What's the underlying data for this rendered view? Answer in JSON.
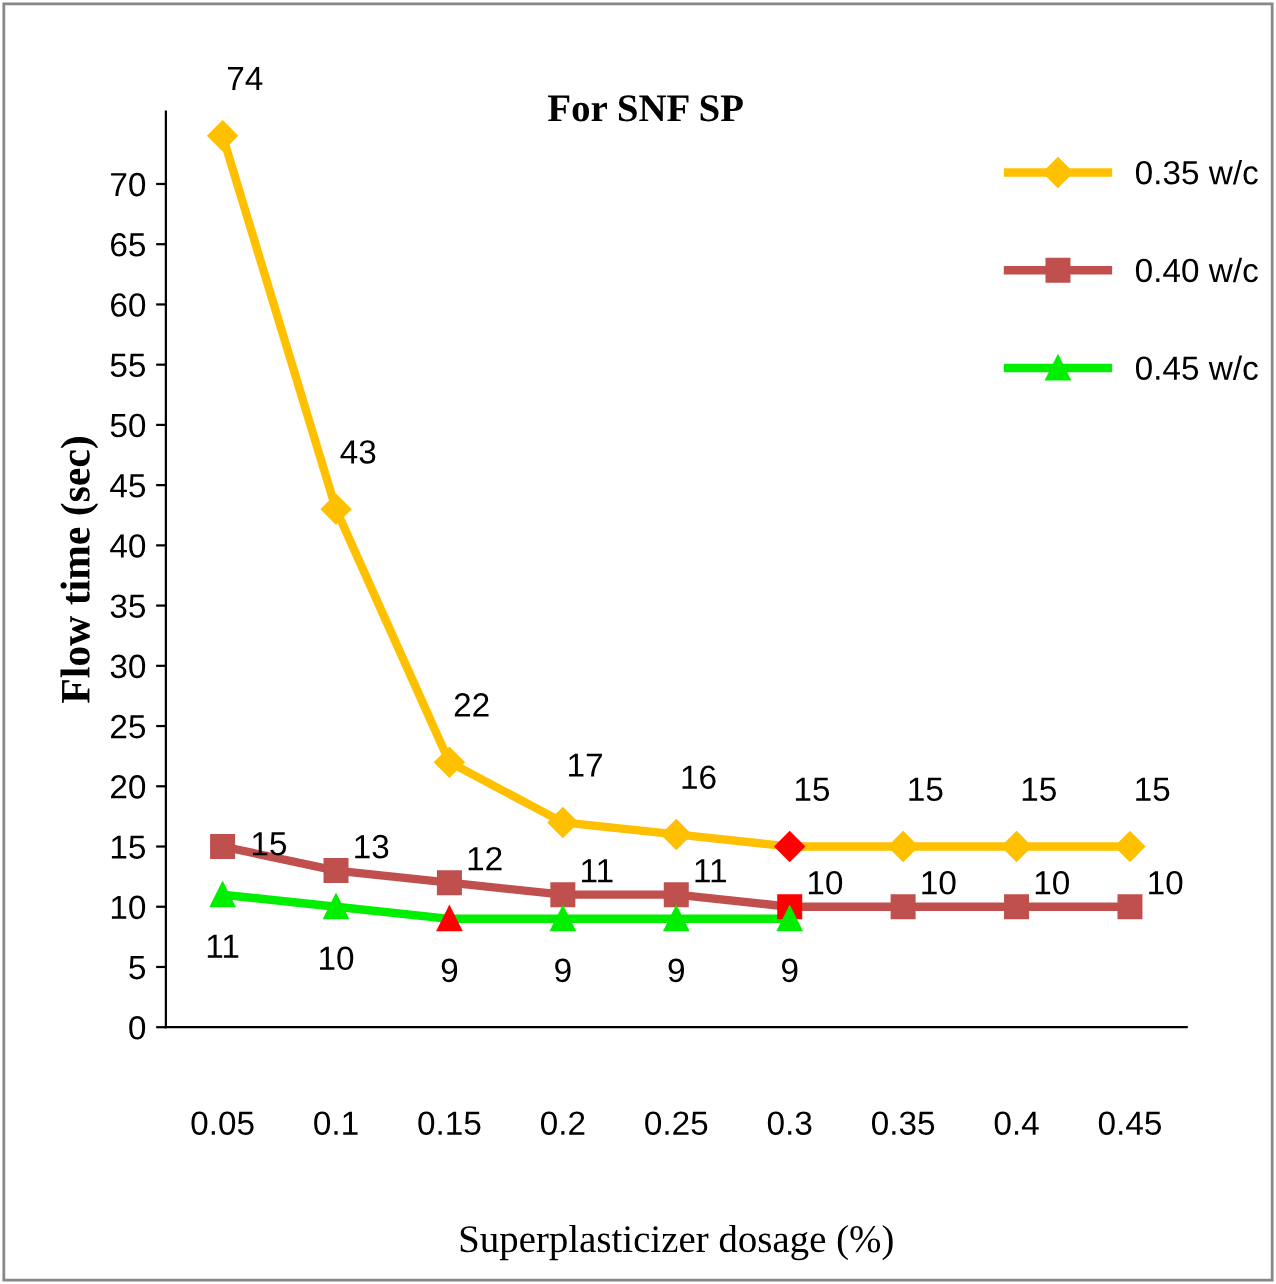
{
  "chart_data": {
    "type": "line",
    "title": "For SNF SP",
    "xlabel": "Superplasticizer dosage (%)",
    "ylabel": "Flow time (sec)",
    "categories": [
      "0.05",
      "0.1",
      "0.15",
      "0.2",
      "0.25",
      "0.3",
      "0.35",
      "0.4",
      "0.45"
    ],
    "series": [
      {
        "name": "0.35 w/c",
        "color": "#ffc000",
        "marker": "diamond",
        "values": [
          74,
          43,
          22,
          17,
          16,
          15,
          15,
          15,
          15
        ],
        "colors": [
          "#ffc000",
          "#ffc000",
          "#ffc000",
          "#ffc000",
          "#ffc000",
          "#ff0000",
          "#ffc000",
          "#ffc000",
          "#ffc000"
        ]
      },
      {
        "name": "0.40 w/c",
        "color": "#c0504d",
        "marker": "square",
        "values": [
          15,
          13,
          12,
          11,
          11,
          10,
          10,
          10,
          10
        ],
        "colors": [
          "#c0504d",
          "#c0504d",
          "#c0504d",
          "#c0504d",
          "#c0504d",
          "#ff0000",
          "#c0504d",
          "#c0504d",
          "#c0504d"
        ]
      },
      {
        "name": "0.45 w/c",
        "color": "#00ee00",
        "marker": "triangle",
        "values": [
          11,
          10,
          9,
          9,
          9,
          9,
          null,
          null,
          null
        ],
        "colors": [
          "#00ee00",
          "#00ee00",
          "#ff0000",
          "#00ee00",
          "#00ee00",
          "#00ee00",
          null,
          null,
          null
        ]
      }
    ],
    "ylim": [
      0,
      76
    ],
    "yticks": [
      0,
      5,
      10,
      15,
      20,
      25,
      30,
      35,
      40,
      45,
      50,
      55,
      60,
      65,
      70
    ],
    "grid": false,
    "legend": "top right",
    "data_labels": true,
    "line_style": "solid"
  }
}
